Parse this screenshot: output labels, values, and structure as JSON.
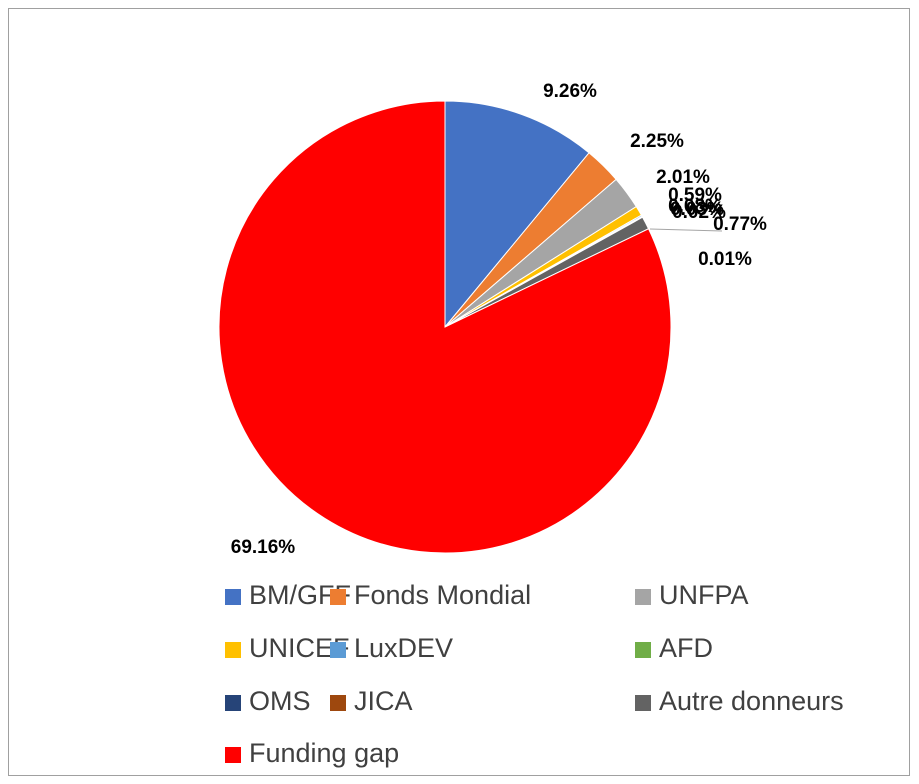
{
  "chart_data": {
    "type": "pie",
    "categories": [
      "BM/GFF",
      "Fonds Mondial",
      "UNFPA",
      "UNICEF",
      "LuxDEV",
      "AFD",
      "OMS",
      "JICA",
      "Autre donneurs",
      "Funding gap"
    ],
    "values": [
      9.26,
      2.25,
      2.01,
      0.59,
      0.08,
      0.03,
      0.02,
      0.01,
      0.77,
      69.16
    ],
    "value_labels": [
      "9.26%",
      "2.25%",
      "2.01%",
      "0.59%",
      "0.08%",
      "0.03%",
      "0.02%",
      "0.01%",
      "0.77%",
      "69.16%"
    ],
    "colors": [
      "#4472c4",
      "#ed7d31",
      "#a5a5a5",
      "#ffc000",
      "#5b9bd5",
      "#70ad47",
      "#264478",
      "#9e480e",
      "#636363",
      "#ff0000"
    ],
    "legend": "bottom"
  }
}
